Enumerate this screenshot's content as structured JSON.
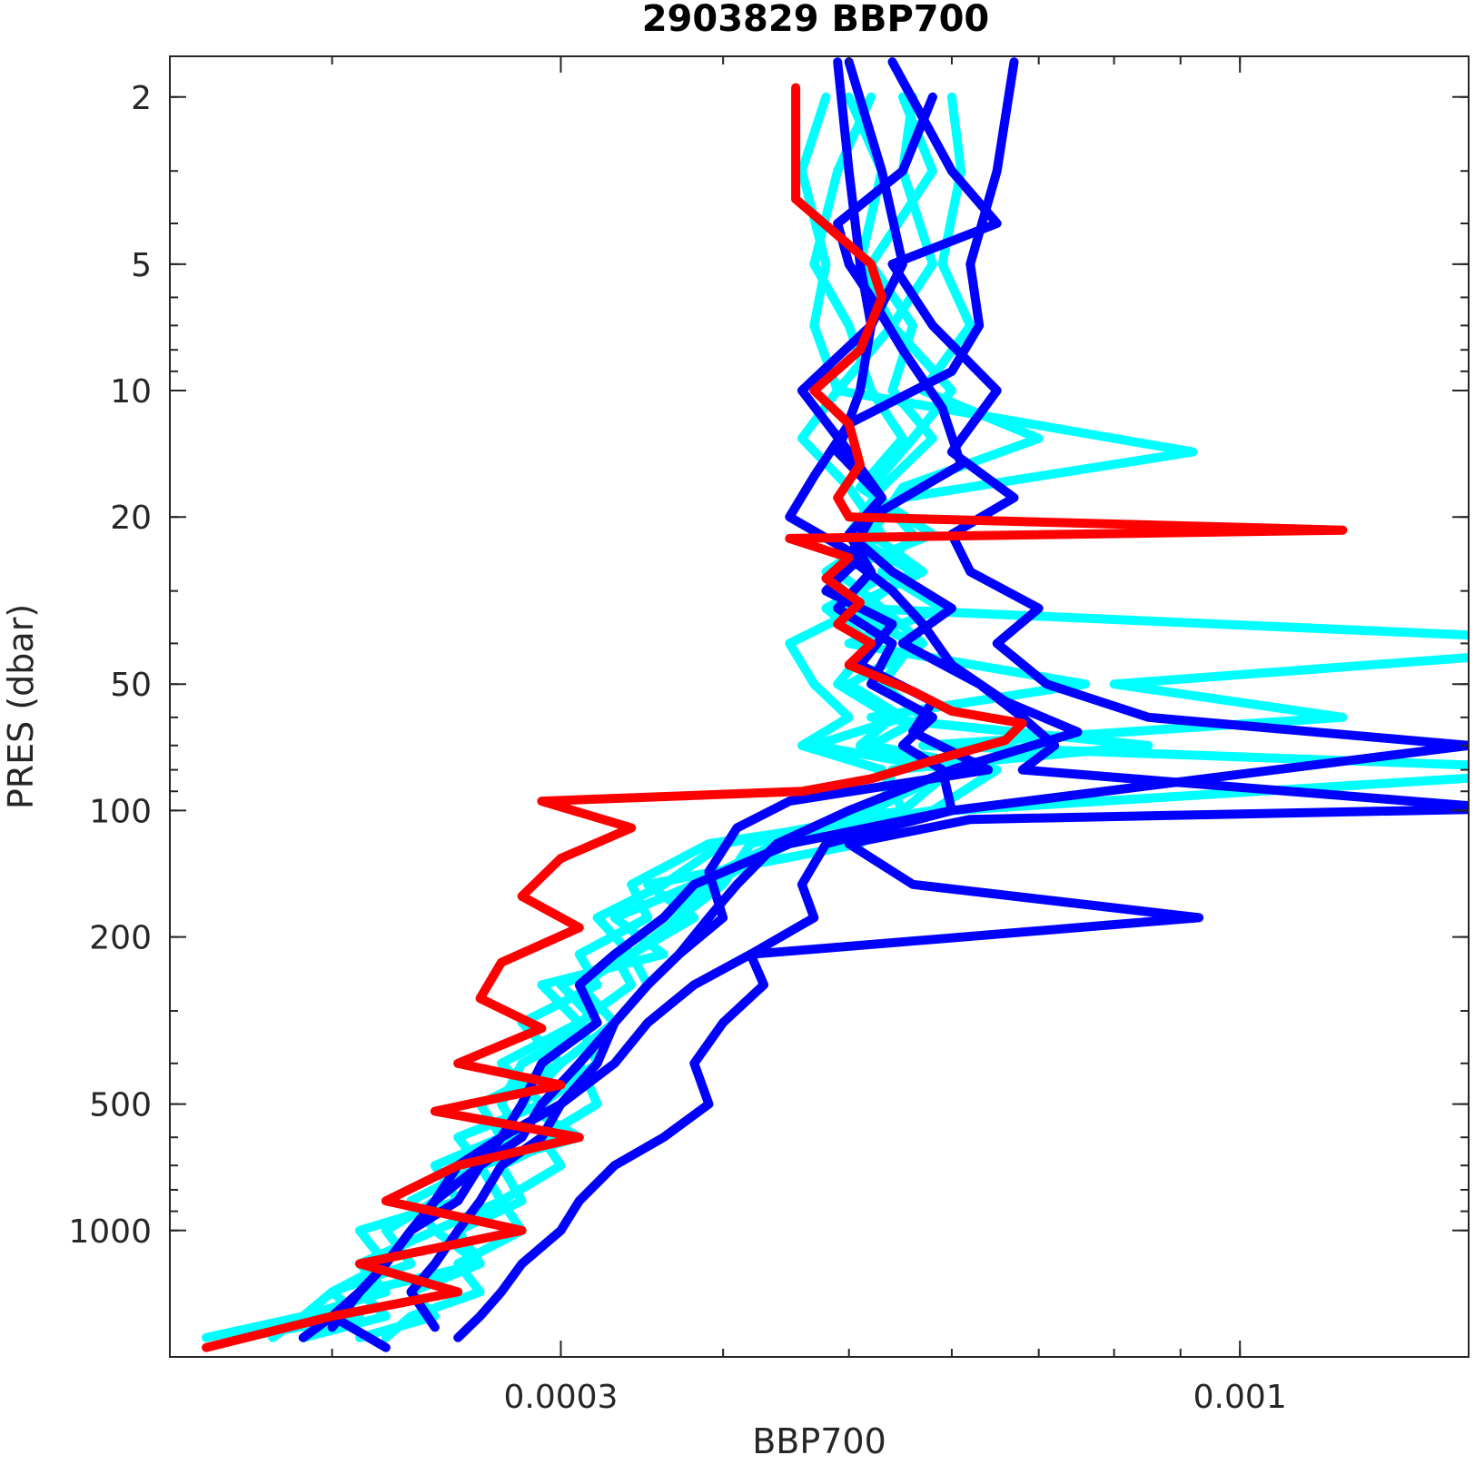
{
  "chart_data": {
    "type": "line",
    "title": "2903829 BBP700",
    "xlabel": "BBP700",
    "ylabel": "PRES (dbar)",
    "x_scale": "log",
    "y_scale": "log",
    "y_reversed": true,
    "xlim": [
      0.00015,
      0.0015
    ],
    "ylim": [
      1.6,
      2000
    ],
    "x_tick_labels": [
      {
        "value": 0.0003,
        "label": "0.0003"
      },
      {
        "value": 0.001,
        "label": "0.001"
      }
    ],
    "y_tick_labels": [
      {
        "value": 2,
        "label": "2"
      },
      {
        "value": 5,
        "label": "5"
      },
      {
        "value": 10,
        "label": "10"
      },
      {
        "value": 20,
        "label": "20"
      },
      {
        "value": 50,
        "label": "50"
      },
      {
        "value": 100,
        "label": "100"
      },
      {
        "value": 200,
        "label": "200"
      },
      {
        "value": 500,
        "label": "500"
      },
      {
        "value": 1000,
        "label": "1000"
      }
    ],
    "grid": false,
    "series": [
      {
        "color": "#00ffff",
        "x": [
          0.00048,
          0.00046,
          0.00048,
          0.00047,
          0.00049,
          0.00046,
          0.0005,
          0.00053,
          0.00048,
          0.00051,
          0.00045,
          0.00047,
          0.0005,
          0.00046,
          0.00053,
          0.00055,
          0.00051,
          0.00035,
          0.00038,
          0.00034,
          0.00031,
          0.00033,
          0.0003,
          0.00028,
          0.00031,
          0.00026,
          0.00027,
          0.00024,
          0.00026,
          0.00021,
          0.00022,
          0.00019
        ],
        "y": [
          2,
          3,
          5,
          7,
          10,
          13,
          17,
          22,
          27,
          33,
          40,
          50,
          60,
          70,
          80,
          100,
          120,
          150,
          180,
          220,
          260,
          320,
          400,
          500,
          600,
          700,
          850,
          1000,
          1200,
          1400,
          1600,
          1800
        ]
      },
      {
        "color": "#00ffff",
        "x": [
          0.00052,
          0.00049,
          0.00047,
          0.0005,
          0.00052,
          0.00055,
          0.00051,
          0.00058,
          0.00049,
          0.00053,
          0.00057,
          0.0005,
          0.00055,
          0.00047,
          0.0006,
          0.00052,
          0.00044,
          0.00038,
          0.00033,
          0.00036,
          0.00029,
          0.00031,
          0.00027,
          0.00029,
          0.00025,
          0.00026,
          0.00023,
          0.00024,
          0.00021,
          0.00022,
          0.00019,
          0.00018
        ],
        "y": [
          2,
          3,
          5,
          7,
          10,
          13,
          17,
          22,
          27,
          33,
          40,
          50,
          60,
          70,
          80,
          100,
          120,
          150,
          180,
          220,
          260,
          320,
          400,
          500,
          600,
          700,
          850,
          1000,
          1200,
          1400,
          1600,
          1800
        ]
      },
      {
        "color": "#00ffff",
        "x": [
          0.00055,
          0.00058,
          0.00052,
          0.00056,
          0.00054,
          0.00058,
          0.00053,
          0.0005,
          0.00054,
          0.00048,
          0.00052,
          0.00049,
          0.00054,
          0.00051,
          0.0006,
          0.00055,
          0.0004,
          0.00036,
          0.00032,
          0.00034,
          0.0003,
          0.00032,
          0.00028,
          0.00027,
          0.00028,
          0.00025,
          0.00024,
          0.00022,
          0.00023,
          0.0002,
          0.00021,
          0.00017
        ],
        "y": [
          2,
          3,
          5,
          7,
          10,
          13,
          17,
          22,
          27,
          33,
          40,
          50,
          60,
          70,
          80,
          100,
          120,
          150,
          180,
          220,
          260,
          320,
          400,
          500,
          600,
          700,
          850,
          1000,
          1200,
          1400,
          1600,
          1800
        ]
      },
      {
        "color": "#00ffff",
        "x": [
          0.0006,
          0.00061,
          0.00059,
          0.00062,
          0.00057,
          0.0007,
          0.00055,
          0.00052,
          0.00057,
          0.0005,
          0.00056,
          0.00053,
          0.00057,
          0.00052,
          0.00065,
          0.00058,
          0.00039,
          0.00034,
          0.00035,
          0.00031,
          0.00032,
          0.00028,
          0.0003,
          0.00026,
          0.00027,
          0.00024,
          0.00025,
          0.00021,
          0.00022,
          0.0002,
          0.00019,
          0.00016
        ],
        "y": [
          2,
          3,
          5,
          7,
          10,
          13,
          17,
          22,
          27,
          33,
          40,
          50,
          60,
          70,
          80,
          100,
          120,
          150,
          180,
          220,
          260,
          320,
          400,
          500,
          600,
          700,
          850,
          1000,
          1200,
          1400,
          1600,
          1800
        ]
      },
      {
        "color": "#00ffff",
        "x": [
          0.00056,
          0.00055,
          0.00058,
          0.00054,
          0.0006,
          0.00056,
          0.00052,
          0.00056,
          0.00053,
          0.00059,
          0.0005,
          0.00076,
          0.00052,
          0.00085,
          0.00054,
          0.00053,
          0.00042,
          0.0004,
          0.00037,
          0.00034,
          0.00035,
          0.00033,
          0.00031,
          0.00032,
          0.00029,
          0.0003,
          0.00027,
          0.00028,
          0.00025,
          0.00026,
          0.00023,
          0.00022
        ],
        "y": [
          2,
          3,
          5,
          7,
          10,
          13,
          17,
          22,
          27,
          33,
          40,
          50,
          60,
          70,
          80,
          100,
          120,
          150,
          180,
          220,
          260,
          320,
          400,
          500,
          600,
          700,
          850,
          1000,
          1200,
          1400,
          1600,
          1800
        ]
      },
      {
        "color": "#00ffff",
        "x": [
          0.0005,
          0.00053,
          0.00051,
          0.00054,
          0.00049,
          0.00092,
          0.00055,
          0.0005,
          0.00056,
          0.00051,
          0.0021,
          0.0008,
          0.0012,
          0.00057,
          0.0019,
          0.0006,
          0.00045,
          0.00039,
          0.00036,
          0.00033,
          0.00034,
          0.00031,
          0.00032,
          0.00029,
          0.0003,
          0.00027,
          0.00028,
          0.00025,
          0.00026,
          0.00023,
          0.00024,
          0.00021
        ],
        "y": [
          2,
          3,
          5,
          7,
          10,
          14,
          18,
          22,
          27,
          33,
          40,
          50,
          60,
          70,
          80,
          100,
          120,
          150,
          180,
          220,
          260,
          320,
          400,
          500,
          600,
          700,
          850,
          1000,
          1200,
          1400,
          1600,
          1800
        ]
      },
      {
        "color": "#0000ff",
        "x": [
          0.0005,
          0.00053,
          0.00055,
          0.00052,
          0.00051,
          0.00049,
          0.00053,
          0.0005,
          0.00052,
          0.00049,
          0.00054,
          0.00052,
          0.00058,
          0.00055,
          0.00059,
          0.0006,
          0.00045,
          0.00038,
          0.00036,
          0.00033,
          0.00031,
          0.00032,
          0.00029,
          0.00028,
          0.00027,
          0.00025,
          0.00024,
          0.00023,
          0.00022,
          0.00021,
          0.0002,
          0.00022
        ],
        "y": [
          1.65,
          3,
          5,
          7,
          10,
          14,
          18,
          22,
          27,
          33,
          40,
          50,
          60,
          70,
          80,
          100,
          120,
          150,
          180,
          220,
          260,
          320,
          400,
          500,
          600,
          700,
          850,
          1000,
          1200,
          1400,
          1600,
          1900
        ]
      },
      {
        "color": "#0000ff",
        "x": [
          0.00054,
          0.0006,
          0.00065,
          0.00054,
          0.00058,
          0.00065,
          0.0006,
          0.00067,
          0.0006,
          0.00062,
          0.0007,
          0.00065,
          0.00071,
          0.00085,
          0.0015,
          0.0006,
          0.00048,
          0.00046,
          0.00047,
          0.00042,
          0.00043,
          0.0004,
          0.00038,
          0.00039,
          0.00036,
          0.00033,
          0.00031,
          0.0003,
          0.00028,
          0.00027,
          0.00026,
          0.00025
        ],
        "y": [
          1.65,
          3,
          4,
          5,
          7,
          10,
          14,
          18,
          22,
          27,
          33,
          40,
          50,
          60,
          70,
          100,
          120,
          150,
          180,
          220,
          260,
          320,
          400,
          500,
          600,
          700,
          850,
          1000,
          1200,
          1400,
          1600,
          1800
        ]
      },
      {
        "color": "#0000ff",
        "x": [
          0.00067,
          0.00065,
          0.00062,
          0.00063,
          0.0006,
          0.0005,
          0.00047,
          0.00045,
          0.00051,
          0.00048,
          0.00054,
          0.00051,
          0.00058,
          0.00056,
          0.00064,
          0.00045,
          0.00041,
          0.00039,
          0.0004,
          0.00037,
          0.00035,
          0.00033,
          0.00031,
          0.00029,
          0.00028,
          0.00026,
          0.00025,
          0.00023,
          0.00022,
          0.00021,
          0.0002,
          0.00019
        ],
        "y": [
          1.65,
          3,
          5,
          7,
          9,
          12,
          16,
          20,
          25,
          30,
          36,
          45,
          55,
          65,
          80,
          95,
          110,
          140,
          180,
          220,
          260,
          320,
          400,
          500,
          600,
          700,
          850,
          1000,
          1200,
          1400,
          1600,
          1800
        ]
      },
      {
        "color": "#0000ff",
        "x": [
          0.00058,
          0.00055,
          0.00049,
          0.0005,
          0.00052,
          0.00055,
          0.00059,
          0.00061,
          0.00052,
          0.0005,
          0.00054,
          0.00057,
          0.0006,
          0.00066,
          0.00075,
          0.0006,
          0.0005,
          0.00044,
          0.00041,
          0.00039,
          0.00037,
          0.00035,
          0.00033,
          0.00032,
          0.0003,
          0.00029,
          0.00027,
          0.00026,
          0.00025,
          0.00024,
          0.00023,
          0.00024
        ],
        "y": [
          2,
          3,
          4,
          5,
          6,
          8,
          11,
          15,
          20,
          25,
          30,
          36,
          45,
          55,
          65,
          80,
          100,
          120,
          150,
          180,
          220,
          260,
          320,
          400,
          500,
          600,
          700,
          850,
          1000,
          1200,
          1400,
          1700
        ]
      },
      {
        "color": "#0000ff",
        "x": [
          0.00049,
          0.0005,
          0.00051,
          0.00052,
          0.00046,
          0.0005,
          0.00053,
          0.0005,
          0.00054,
          0.0006,
          0.00055,
          0.00063,
          0.00068,
          0.00072,
          0.00068,
          0.0016,
          0.00062,
          0.0005,
          0.00056,
          0.00093,
          0.00042,
          0.00038,
          0.00035,
          0.00033,
          0.0003,
          0.00027,
          0.00026,
          0.00024,
          0.00023,
          0.00022,
          0.00021,
          0.0002
        ],
        "y": [
          1.65,
          3,
          5,
          7,
          10,
          14,
          18,
          22,
          27,
          33,
          40,
          50,
          60,
          70,
          80,
          99,
          105,
          120,
          150,
          180,
          220,
          260,
          320,
          400,
          500,
          600,
          700,
          850,
          1000,
          1200,
          1400,
          1700
        ]
      },
      {
        "color": "#ff0000",
        "x": [
          0.000455,
          0.000455,
          0.00052,
          0.00053,
          0.00051,
          0.00047,
          0.0005,
          0.00051,
          0.00049,
          0.0005,
          0.0012,
          0.00045,
          0.0005,
          0.00048,
          0.00051,
          0.00049,
          0.00052,
          0.0005,
          0.00056,
          0.0006,
          0.00068,
          0.00066,
          0.00058,
          0.00052,
          0.00046,
          0.00029,
          0.00034,
          0.0003,
          0.00028,
          0.00031,
          0.00027,
          0.00026,
          0.00029,
          0.00025,
          0.0003,
          0.00024,
          0.00031,
          0.00025,
          0.00022,
          0.00028,
          0.00021,
          0.00025,
          0.0002,
          0.00016
        ],
        "y": [
          1.9,
          3.5,
          5,
          6,
          8,
          10,
          12,
          15,
          18,
          20,
          21.5,
          22.5,
          25,
          28,
          32,
          36,
          40,
          45,
          52,
          58,
          62,
          68,
          76,
          84,
          90,
          95,
          110,
          130,
          160,
          190,
          230,
          280,
          330,
          400,
          450,
          520,
          600,
          700,
          850,
          1000,
          1200,
          1400,
          1600,
          1900
        ]
      }
    ]
  }
}
